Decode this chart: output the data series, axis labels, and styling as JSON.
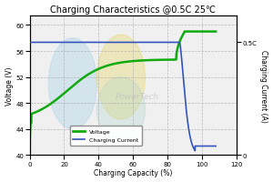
{
  "title": "Charging Characteristics @0.5C 25℃",
  "xlabel": "Charging Capacity (%)",
  "ylabel_left": "Voltage (V)",
  "ylabel_right": "Charging Current (A)",
  "xlim": [
    0,
    120
  ],
  "ylim_left": [
    40.0,
    61.5
  ],
  "ylim_right": [
    0,
    0.62
  ],
  "yticks_left": [
    40.0,
    44.0,
    48.0,
    52.0,
    56.0,
    60.0
  ],
  "yticks_right": [
    0.0,
    0.5
  ],
  "yticks_right_labels": [
    "0",
    "0.5C"
  ],
  "xticks": [
    0,
    20,
    40,
    60,
    80,
    100,
    120
  ],
  "voltage_color": "#11aa11",
  "current_color": "#3355bb",
  "bg_color": "#f0f0f0",
  "watermark_color1": "#aad4e8",
  "watermark_color2": "#e8d870",
  "watermark_color3": "#aad4cc",
  "legend_labels": [
    "Voltage",
    "Charging Current"
  ]
}
